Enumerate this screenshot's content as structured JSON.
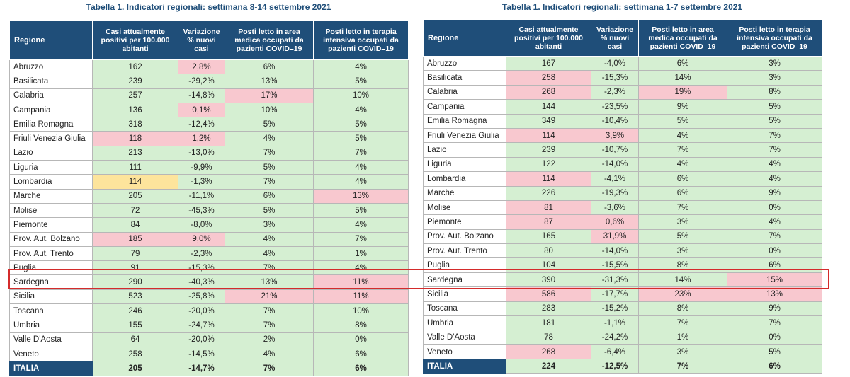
{
  "colors": {
    "header": "#1f4e79",
    "green": "#d5efd2",
    "pink": "#f8c8cf",
    "yellow": "#fde49c",
    "highlight": "#d42b2b"
  },
  "left": {
    "title": "Tabella 1. Indicatori regionali: settimana 8-14 settembre 2021",
    "headers": [
      "Regione",
      "Casi attualmente positivi per 100.000 abitanti",
      "Variazione % nuovi casi",
      "Posti letto in area medica occupati da pazienti COVID–19",
      "Posti letto in terapia intensiva occupati da pazienti COVID–19"
    ],
    "rows": [
      {
        "cells": [
          "Abruzzo",
          "162",
          "2,8%",
          "6%",
          "4%"
        ],
        "shade": [
          "w",
          "g",
          "p",
          "g",
          "g"
        ]
      },
      {
        "cells": [
          "Basilicata",
          "239",
          "-29,2%",
          "13%",
          "5%"
        ],
        "shade": [
          "w",
          "g",
          "g",
          "g",
          "g"
        ]
      },
      {
        "cells": [
          "Calabria",
          "257",
          "-14,8%",
          "17%",
          "10%"
        ],
        "shade": [
          "w",
          "g",
          "g",
          "p",
          "g"
        ]
      },
      {
        "cells": [
          "Campania",
          "136",
          "0,1%",
          "10%",
          "4%"
        ],
        "shade": [
          "w",
          "g",
          "p",
          "g",
          "g"
        ]
      },
      {
        "cells": [
          "Emilia Romagna",
          "318",
          "-12,4%",
          "5%",
          "5%"
        ],
        "shade": [
          "w",
          "g",
          "g",
          "g",
          "g"
        ]
      },
      {
        "cells": [
          "Friuli Venezia Giulia",
          "118",
          "1,2%",
          "4%",
          "5%"
        ],
        "shade": [
          "w",
          "p",
          "p",
          "g",
          "g"
        ]
      },
      {
        "cells": [
          "Lazio",
          "213",
          "-13,0%",
          "7%",
          "7%"
        ],
        "shade": [
          "w",
          "g",
          "g",
          "g",
          "g"
        ]
      },
      {
        "cells": [
          "Liguria",
          "111",
          "-9,9%",
          "5%",
          "4%"
        ],
        "shade": [
          "w",
          "g",
          "g",
          "g",
          "g"
        ]
      },
      {
        "cells": [
          "Lombardia",
          "114",
          "-1,3%",
          "7%",
          "4%"
        ],
        "shade": [
          "w",
          "y",
          "g",
          "g",
          "g"
        ]
      },
      {
        "cells": [
          "Marche",
          "205",
          "-11,1%",
          "6%",
          "13%"
        ],
        "shade": [
          "w",
          "g",
          "g",
          "g",
          "p"
        ]
      },
      {
        "cells": [
          "Molise",
          "72",
          "-45,3%",
          "5%",
          "5%"
        ],
        "shade": [
          "w",
          "g",
          "g",
          "g",
          "g"
        ]
      },
      {
        "cells": [
          "Piemonte",
          "84",
          "-8,0%",
          "3%",
          "4%"
        ],
        "shade": [
          "w",
          "g",
          "g",
          "g",
          "g"
        ]
      },
      {
        "cells": [
          "Prov. Aut. Bolzano",
          "185",
          "9,0%",
          "4%",
          "7%"
        ],
        "shade": [
          "w",
          "p",
          "p",
          "g",
          "g"
        ]
      },
      {
        "cells": [
          "Prov. Aut. Trento",
          "79",
          "-2,3%",
          "4%",
          "1%"
        ],
        "shade": [
          "w",
          "g",
          "g",
          "g",
          "g"
        ]
      },
      {
        "cells": [
          "Puglia",
          "91",
          "-15,3%",
          "7%",
          "4%"
        ],
        "shade": [
          "w",
          "g",
          "g",
          "g",
          "g"
        ]
      },
      {
        "cells": [
          "Sardegna",
          "290",
          "-40,3%",
          "13%",
          "11%"
        ],
        "shade": [
          "w",
          "g",
          "g",
          "g",
          "p"
        ]
      },
      {
        "cells": [
          "Sicilia",
          "523",
          "-25,8%",
          "21%",
          "11%"
        ],
        "shade": [
          "w",
          "g",
          "g",
          "p",
          "p"
        ]
      },
      {
        "cells": [
          "Toscana",
          "246",
          "-20,0%",
          "7%",
          "10%"
        ],
        "shade": [
          "w",
          "g",
          "g",
          "g",
          "g"
        ]
      },
      {
        "cells": [
          "Umbria",
          "155",
          "-24,7%",
          "7%",
          "8%"
        ],
        "shade": [
          "w",
          "g",
          "g",
          "g",
          "g"
        ]
      },
      {
        "cells": [
          "Valle D'Aosta",
          "64",
          "-20,0%",
          "2%",
          "0%"
        ],
        "shade": [
          "w",
          "g",
          "g",
          "g",
          "g"
        ]
      },
      {
        "cells": [
          "Veneto",
          "258",
          "-14,5%",
          "4%",
          "6%"
        ],
        "shade": [
          "w",
          "g",
          "g",
          "g",
          "g"
        ]
      }
    ],
    "total": [
      "ITALIA",
      "205",
      "-14,7%",
      "7%",
      "6%"
    ]
  },
  "right": {
    "title": "Tabella 1. Indicatori regionali: settimana 1-7 settembre 2021",
    "headers": [
      "Regione",
      "Casi attualmente positivi per 100.000 abitanti",
      "Variazione % nuovi casi",
      "Posti letto in area medica occupati da pazienti COVID–19",
      "Posti letto in terapia intensiva occupati da pazienti COVID–19"
    ],
    "rows": [
      {
        "cells": [
          "Abruzzo",
          "167",
          "-4,0%",
          "6%",
          "3%"
        ],
        "shade": [
          "w",
          "g",
          "g",
          "g",
          "g"
        ]
      },
      {
        "cells": [
          "Basilicata",
          "258",
          "-15,3%",
          "14%",
          "3%"
        ],
        "shade": [
          "w",
          "p",
          "g",
          "g",
          "g"
        ]
      },
      {
        "cells": [
          "Calabria",
          "268",
          "-2,3%",
          "19%",
          "8%"
        ],
        "shade": [
          "w",
          "p",
          "g",
          "p",
          "g"
        ]
      },
      {
        "cells": [
          "Campania",
          "144",
          "-23,5%",
          "9%",
          "5%"
        ],
        "shade": [
          "w",
          "g",
          "g",
          "g",
          "g"
        ]
      },
      {
        "cells": [
          "Emilia Romagna",
          "349",
          "-10,4%",
          "5%",
          "5%"
        ],
        "shade": [
          "w",
          "g",
          "g",
          "g",
          "g"
        ]
      },
      {
        "cells": [
          "Friuli Venezia Giulia",
          "114",
          "3,9%",
          "4%",
          "7%"
        ],
        "shade": [
          "w",
          "p",
          "p",
          "g",
          "g"
        ]
      },
      {
        "cells": [
          "Lazio",
          "239",
          "-10,7%",
          "7%",
          "7%"
        ],
        "shade": [
          "w",
          "g",
          "g",
          "g",
          "g"
        ]
      },
      {
        "cells": [
          "Liguria",
          "122",
          "-14,0%",
          "4%",
          "4%"
        ],
        "shade": [
          "w",
          "g",
          "g",
          "g",
          "g"
        ]
      },
      {
        "cells": [
          "Lombardia",
          "114",
          "-4,1%",
          "6%",
          "4%"
        ],
        "shade": [
          "w",
          "p",
          "g",
          "g",
          "g"
        ]
      },
      {
        "cells": [
          "Marche",
          "226",
          "-19,3%",
          "6%",
          "9%"
        ],
        "shade": [
          "w",
          "g",
          "g",
          "g",
          "g"
        ]
      },
      {
        "cells": [
          "Molise",
          "81",
          "-3,6%",
          "7%",
          "0%"
        ],
        "shade": [
          "w",
          "p",
          "g",
          "g",
          "g"
        ]
      },
      {
        "cells": [
          "Piemonte",
          "87",
          "0,6%",
          "3%",
          "4%"
        ],
        "shade": [
          "w",
          "p",
          "p",
          "g",
          "g"
        ]
      },
      {
        "cells": [
          "Prov. Aut. Bolzano",
          "165",
          "31,9%",
          "5%",
          "7%"
        ],
        "shade": [
          "w",
          "g",
          "p",
          "g",
          "g"
        ]
      },
      {
        "cells": [
          "Prov. Aut. Trento",
          "80",
          "-14,0%",
          "3%",
          "0%"
        ],
        "shade": [
          "w",
          "g",
          "g",
          "g",
          "g"
        ]
      },
      {
        "cells": [
          "Puglia",
          "104",
          "-15,5%",
          "8%",
          "6%"
        ],
        "shade": [
          "w",
          "g",
          "g",
          "g",
          "g"
        ]
      },
      {
        "cells": [
          "Sardegna",
          "390",
          "-31,3%",
          "14%",
          "15%"
        ],
        "shade": [
          "w",
          "g",
          "g",
          "g",
          "p"
        ]
      },
      {
        "cells": [
          "Sicilia",
          "586",
          "-17,7%",
          "23%",
          "13%"
        ],
        "shade": [
          "w",
          "p",
          "g",
          "p",
          "p"
        ]
      },
      {
        "cells": [
          "Toscana",
          "283",
          "-15,2%",
          "8%",
          "9%"
        ],
        "shade": [
          "w",
          "g",
          "g",
          "g",
          "g"
        ]
      },
      {
        "cells": [
          "Umbria",
          "181",
          "-1,1%",
          "7%",
          "7%"
        ],
        "shade": [
          "w",
          "g",
          "g",
          "g",
          "g"
        ]
      },
      {
        "cells": [
          "Valle D'Aosta",
          "78",
          "-24,2%",
          "1%",
          "0%"
        ],
        "shade": [
          "w",
          "g",
          "g",
          "g",
          "g"
        ]
      },
      {
        "cells": [
          "Veneto",
          "268",
          "-6,4%",
          "3%",
          "5%"
        ],
        "shade": [
          "w",
          "p",
          "g",
          "g",
          "g"
        ]
      }
    ],
    "total": [
      "ITALIA",
      "224",
      "-12,5%",
      "7%",
      "6%"
    ]
  }
}
